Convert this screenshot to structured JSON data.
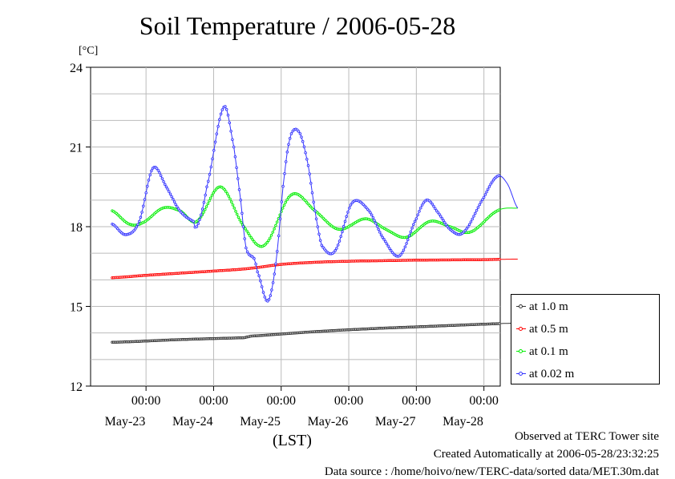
{
  "title": "Soil Temperature / 2006-05-28",
  "unit_label": "[°C]",
  "footer": {
    "observed": "Observed at TERC Tower site",
    "created": "Created Automatically at 2006-05-28/23:32:25",
    "source": "Data source : /home/hoivo/new/TERC-data/sorted  data/MET.30m.dat"
  },
  "chart_data": {
    "type": "line",
    "title": "Soil Temperature / 2006-05-28",
    "ylabel": "[°C]",
    "xlabel": "(LST)",
    "ylim": [
      12,
      24
    ],
    "xlim_days": [
      0,
      6
    ],
    "y_ticks": [
      "12",
      "15",
      "18",
      "21",
      "24"
    ],
    "x_tick_labels": [
      {
        "time": "00:00",
        "date": "May-23"
      },
      {
        "time": "00:00",
        "date": "May-24"
      },
      {
        "time": "00:00",
        "date": "May-25"
      },
      {
        "time": "00:00",
        "date": "May-26"
      },
      {
        "time": "00:00",
        "date": "May-27"
      },
      {
        "time": "00:00",
        "date": "May-28"
      }
    ],
    "x_date_labels": [
      "May-23",
      "May-24",
      "May-25",
      "May-26",
      "May-27",
      "May-28"
    ],
    "grid": true,
    "legend_position": "right",
    "series": [
      {
        "name": "at 1.0 m",
        "color": "#333333",
        "points": [
          [
            0,
            13.65
          ],
          [
            1,
            13.75
          ],
          [
            1.95,
            13.82
          ],
          [
            2.05,
            13.88
          ],
          [
            2.5,
            13.96
          ],
          [
            3,
            14.05
          ],
          [
            3.5,
            14.12
          ],
          [
            4,
            14.18
          ],
          [
            4.5,
            14.23
          ],
          [
            5,
            14.28
          ],
          [
            5.5,
            14.33
          ],
          [
            6,
            14.37
          ]
        ]
      },
      {
        "name": "at 0.5 m",
        "color": "#ff0000",
        "points": [
          [
            0,
            16.08
          ],
          [
            0.5,
            16.17
          ],
          [
            1,
            16.25
          ],
          [
            1.5,
            16.33
          ],
          [
            2,
            16.42
          ],
          [
            2.5,
            16.58
          ],
          [
            3,
            16.66
          ],
          [
            3.5,
            16.7
          ],
          [
            4,
            16.72
          ],
          [
            4.5,
            16.74
          ],
          [
            5,
            16.75
          ],
          [
            5.5,
            16.76
          ],
          [
            6,
            16.78
          ]
        ]
      },
      {
        "name": "at 0.1 m",
        "color": "#00ee00",
        "points": [
          [
            0,
            18.6
          ],
          [
            0.25,
            18.1
          ],
          [
            0.45,
            18.15
          ],
          [
            0.75,
            18.7
          ],
          [
            1,
            18.6
          ],
          [
            1.25,
            18.2
          ],
          [
            1.6,
            19.5
          ],
          [
            1.95,
            18.0
          ],
          [
            2.25,
            17.3
          ],
          [
            2.65,
            19.2
          ],
          [
            3.0,
            18.6
          ],
          [
            3.35,
            17.9
          ],
          [
            3.75,
            18.3
          ],
          [
            4.05,
            17.9
          ],
          [
            4.35,
            17.6
          ],
          [
            4.7,
            18.2
          ],
          [
            5.0,
            18.0
          ],
          [
            5.3,
            17.8
          ],
          [
            5.7,
            18.6
          ],
          [
            6,
            18.7
          ]
        ]
      },
      {
        "name": "at 0.02 m",
        "color": "#3333ff",
        "points": [
          [
            0,
            18.1
          ],
          [
            0.2,
            17.7
          ],
          [
            0.4,
            18.2
          ],
          [
            0.6,
            20.2
          ],
          [
            0.8,
            19.5
          ],
          [
            1.0,
            18.6
          ],
          [
            1.2,
            18.2
          ],
          [
            1.25,
            18.0
          ],
          [
            1.4,
            19.5
          ],
          [
            1.65,
            22.5
          ],
          [
            1.8,
            21.0
          ],
          [
            1.9,
            19.0
          ],
          [
            1.98,
            17.2
          ],
          [
            2.1,
            16.8
          ],
          [
            2.15,
            16.3
          ],
          [
            2.3,
            15.2
          ],
          [
            2.42,
            16.6
          ],
          [
            2.55,
            20.0
          ],
          [
            2.65,
            21.5
          ],
          [
            2.78,
            21.5
          ],
          [
            2.9,
            20.3
          ],
          [
            3.0,
            18.6
          ],
          [
            3.1,
            17.3
          ],
          [
            3.3,
            17.1
          ],
          [
            3.55,
            18.9
          ],
          [
            3.8,
            18.6
          ],
          [
            4.0,
            17.6
          ],
          [
            4.25,
            16.9
          ],
          [
            4.5,
            18.3
          ],
          [
            4.65,
            19.0
          ],
          [
            4.8,
            18.6
          ],
          [
            5.0,
            17.9
          ],
          [
            5.2,
            17.8
          ],
          [
            5.5,
            19.1
          ],
          [
            5.7,
            19.9
          ],
          [
            5.85,
            19.6
          ],
          [
            6,
            18.7
          ]
        ]
      }
    ]
  }
}
